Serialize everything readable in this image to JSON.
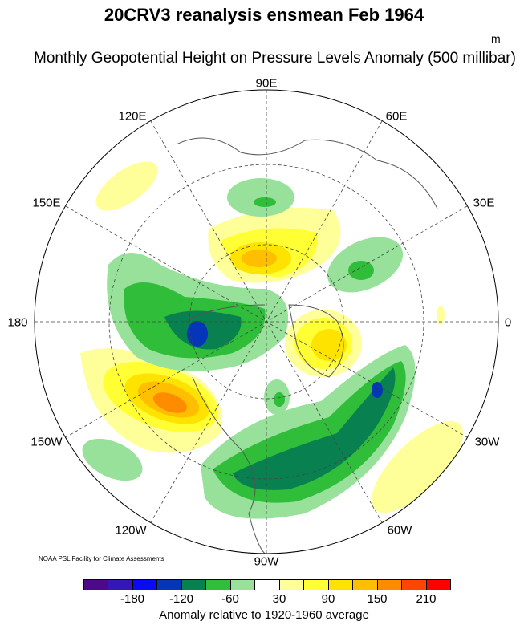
{
  "title": "20CRV3 reanalysis ensmean Feb 1964",
  "subtitle": "Monthly Geopotential Height on Pressure Levels Anomaly (500 millibar)",
  "unit": "m",
  "longitude_labels": [
    "90E",
    "60E",
    "30E",
    "0",
    "30W",
    "60W",
    "90W",
    "120W",
    "150W",
    "180",
    "150E",
    "120E"
  ],
  "credit": "NOAA PSL Facility for Climate Assessments",
  "colorbar": {
    "title": "Anomaly relative to 1920-1960 average",
    "tick_labels": [
      "-180",
      "-120",
      "-60",
      "30",
      "90",
      "150",
      "210"
    ],
    "colors": [
      "#4a0a8a",
      "#3516b8",
      "#0a0af5",
      "#0535b8",
      "#08804f",
      "#30bd3a",
      "#97e19b",
      "#ffffff",
      "#ffff99",
      "#ffff33",
      "#ffe300",
      "#ffbe00",
      "#ff8b00",
      "#ff4500",
      "#ff0000"
    ]
  }
}
